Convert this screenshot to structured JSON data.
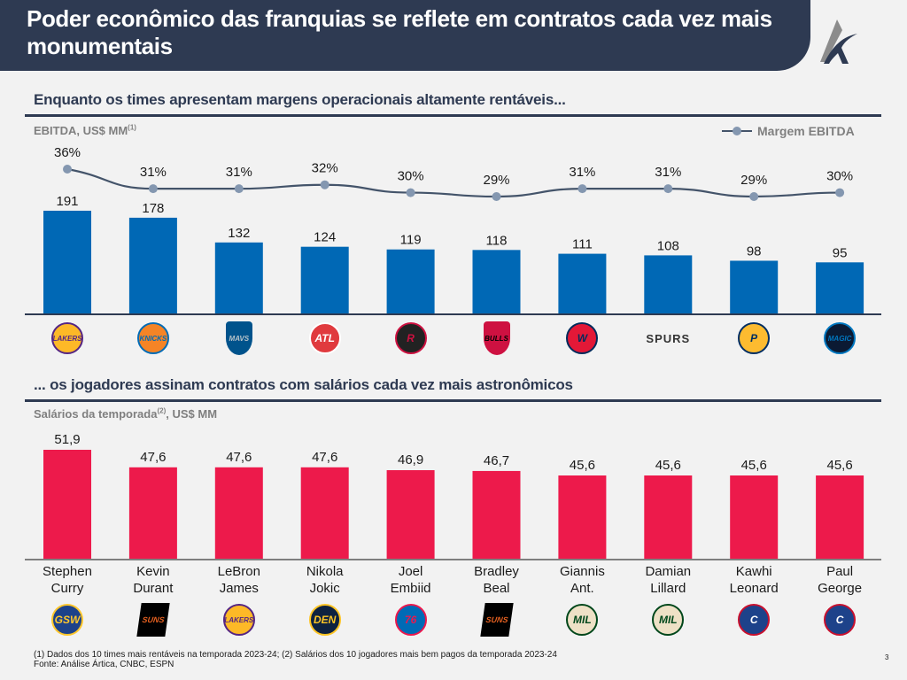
{
  "header": {
    "title": "Poder econômico das franquias se reflete em contratos cada vez mais monumentais",
    "logo_icon": "artica-logo-icon"
  },
  "section1": {
    "title": "Enquanto os times apresentam margens operacionais altamente rentáveis...",
    "unit_label": "EBITDA, US$ MM",
    "unit_footnote_ref": "(1)",
    "legend_label": "Margem EBITDA"
  },
  "section2": {
    "title": "... os jogadores assinam contratos com salários cada vez mais astronômicos",
    "unit_label": "Salários da temporada",
    "unit_footnote_ref": "(2)",
    "unit_suffix": ", US$ MM"
  },
  "footer": {
    "note_line1": "(1) Dados dos 10 times mais rentáveis na temporada 2023-24; (2) Salários dos 10 jogadores mais bem pagos da temporada 2023-24",
    "note_line2": "Fonte: Análise Ártica, CNBC, ESPN",
    "page_number": "3"
  },
  "colors": {
    "navy": "#2e3a52",
    "ebitda_bar": "#0068b5",
    "margin_line": "#44546a",
    "margin_marker": "#8497b0",
    "salary_bar": "#ed1a4b",
    "axis": "#7f7f7f"
  },
  "chart_data": [
    {
      "type": "bar",
      "title": "EBITDA, US$ MM",
      "categories": [
        "Lakers",
        "Knicks",
        "Mavericks",
        "Hawks",
        "Rockets",
        "Bulls",
        "Wizards",
        "Spurs",
        "Pacers",
        "Magic"
      ],
      "category_icons": [
        "lakers-logo-icon",
        "knicks-logo-icon",
        "mavericks-logo-icon",
        "hawks-logo-icon",
        "rockets-logo-icon",
        "bulls-logo-icon",
        "wizards-logo-icon",
        "spurs-logo-icon",
        "pacers-logo-icon",
        "magic-logo-icon"
      ],
      "series": [
        {
          "name": "EBITDA",
          "kind": "bar",
          "values": [
            191,
            178,
            132,
            124,
            119,
            118,
            111,
            108,
            98,
            95
          ],
          "labels": [
            "191",
            "178",
            "132",
            "124",
            "119",
            "118",
            "111",
            "108",
            "98",
            "95"
          ]
        },
        {
          "name": "Margem EBITDA",
          "kind": "line",
          "values": [
            36,
            31,
            31,
            32,
            30,
            29,
            31,
            31,
            29,
            30
          ],
          "labels": [
            "36%",
            "31%",
            "31%",
            "32%",
            "30%",
            "29%",
            "31%",
            "31%",
            "29%",
            "30%"
          ]
        }
      ],
      "xlabel": "",
      "ylabel": "EBITDA, US$ MM",
      "grid": false,
      "legend": "top-right"
    },
    {
      "type": "bar",
      "title": "Salários da temporada, US$ MM",
      "categories": [
        "Stephen Curry",
        "Kevin Durant",
        "LeBron James",
        "Nikola Jokic",
        "Joel Embiid",
        "Bradley Beal",
        "Giannis Ant.",
        "Damian Lillard",
        "Kawhi Leonard",
        "Paul George"
      ],
      "category_lines": [
        [
          "Stephen",
          "Curry"
        ],
        [
          "Kevin",
          "Durant"
        ],
        [
          "LeBron",
          "James"
        ],
        [
          "Nikola",
          "Jokic"
        ],
        [
          "Joel",
          "Embiid"
        ],
        [
          "Bradley",
          "Beal"
        ],
        [
          "Giannis",
          "Ant."
        ],
        [
          "Damian",
          "Lillard"
        ],
        [
          "Kawhi",
          "Leonard"
        ],
        [
          "Paul",
          "George"
        ]
      ],
      "category_icons": [
        "warriors-logo-icon",
        "suns-logo-icon",
        "lakers-logo-icon",
        "nuggets-logo-icon",
        "76ers-logo-icon",
        "suns-logo-icon",
        "bucks-logo-icon",
        "bucks-logo-icon",
        "clippers-logo-icon",
        "clippers-logo-icon"
      ],
      "values": [
        51.9,
        47.6,
        47.6,
        47.6,
        46.9,
        46.7,
        45.6,
        45.6,
        45.6,
        45.6
      ],
      "labels": [
        "51,9",
        "47,6",
        "47,6",
        "47,6",
        "46,9",
        "46,7",
        "45,6",
        "45,6",
        "45,6",
        "45,6"
      ],
      "xlabel": "",
      "ylabel": "US$ MM",
      "grid": false,
      "legend": "none"
    }
  ]
}
